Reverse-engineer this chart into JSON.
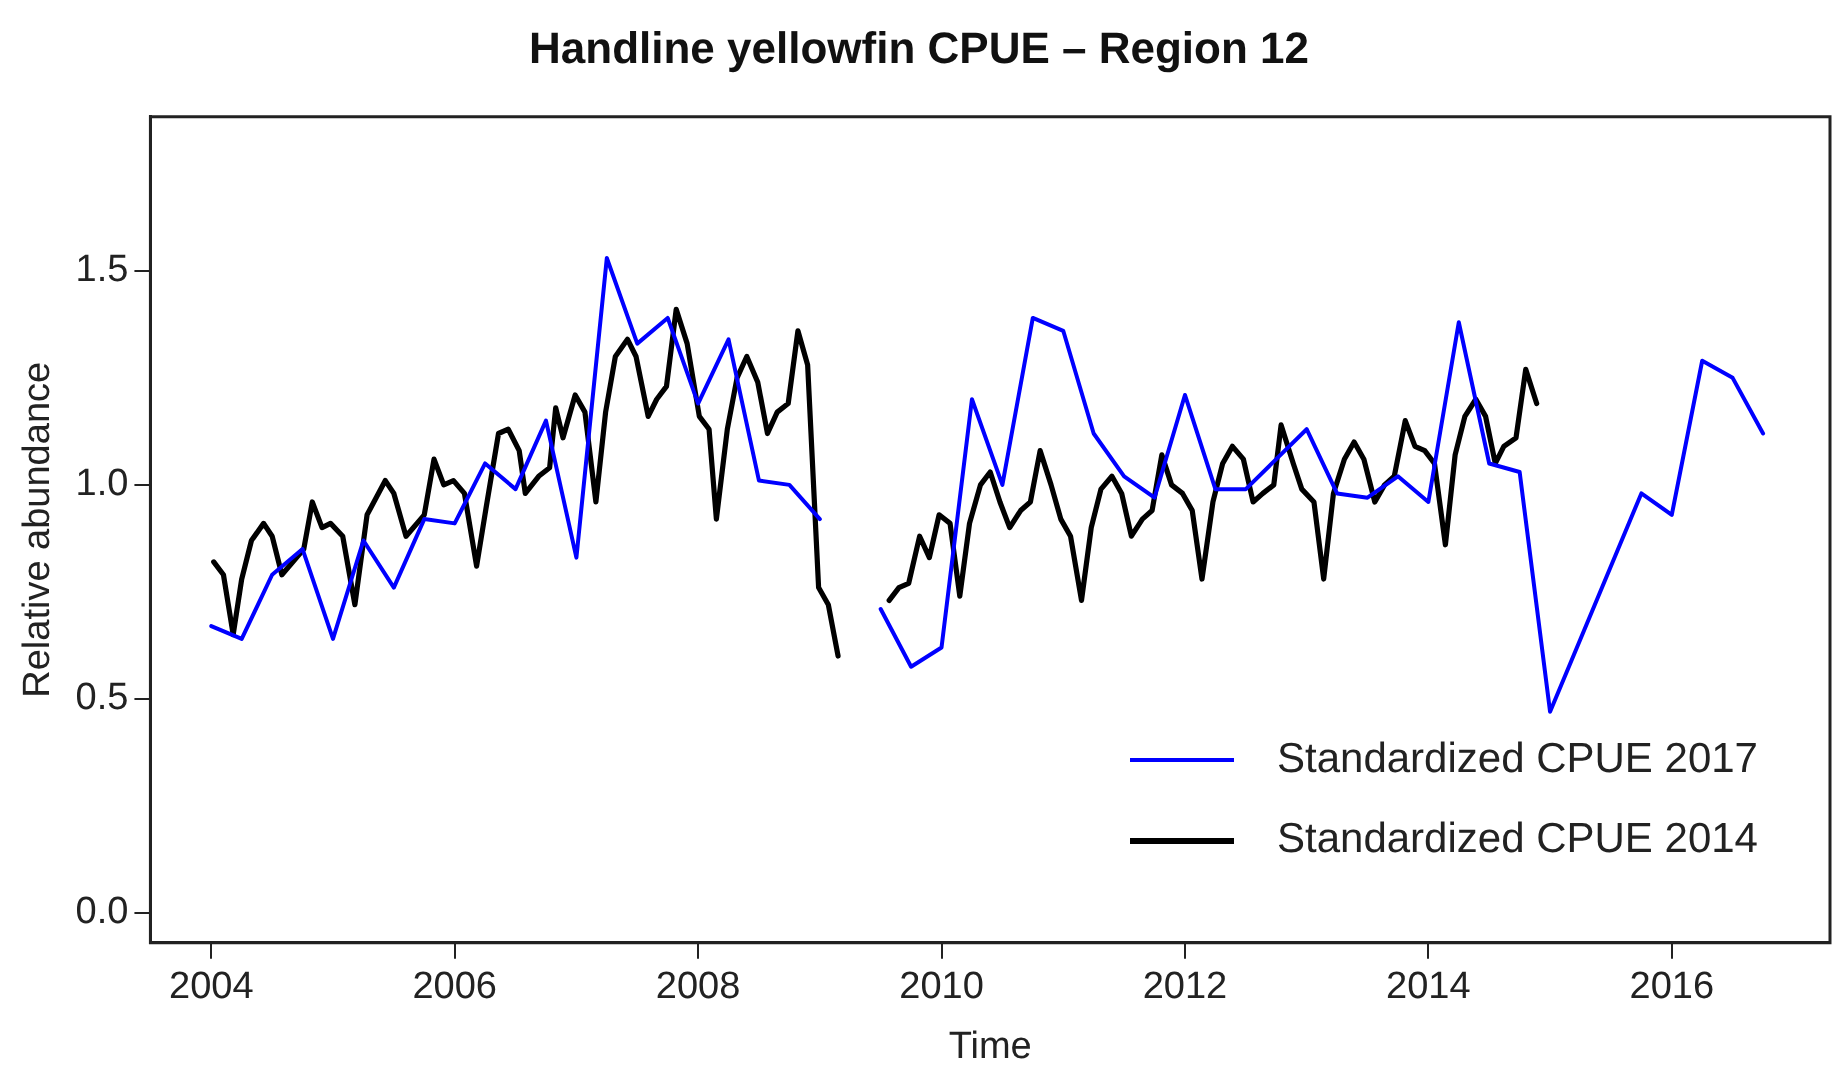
{
  "chart_data": {
    "type": "line",
    "title": "Handline yellowfin CPUE – Region 12",
    "xlabel": "Time",
    "ylabel": "Relative abundance",
    "xlim": [
      2003.5,
      2017.3
    ],
    "xticks": [
      2004,
      2006,
      2008,
      2010,
      2012,
      2014,
      2016
    ],
    "ylim": [
      -0.07,
      1.86
    ],
    "yticks": [
      {
        "value": 0,
        "label": "0.0"
      },
      {
        "value": 0.5,
        "label": "0.5"
      },
      {
        "value": 1,
        "label": "1.0"
      },
      {
        "value": 1.5,
        "label": "1.5"
      }
    ],
    "grid": false,
    "legend": "bottom right",
    "marker": "none",
    "line_style": "solid",
    "series": [
      {
        "name": "Standardized CPUE 2017",
        "color": "#0000ff",
        "x": [
          2004,
          2004.25,
          2004.5,
          2004.75,
          2005,
          2005.25,
          2005.5,
          2005.75,
          2006,
          2006.25,
          2006.5,
          2006.75,
          2007,
          2007.25,
          2007.5,
          2007.75,
          2008,
          2008.25,
          2008.5,
          2008.75,
          2009,
          2009.25,
          2009.5,
          2009.75,
          2010,
          2010.25,
          2010.5,
          2010.75,
          2011,
          2011.25,
          2011.5,
          2011.75,
          2012,
          2012.25,
          2012.5,
          2012.75,
          2013,
          2013.25,
          2013.5,
          2013.75,
          2014,
          2014.25,
          2014.5,
          2014.75,
          2015,
          2015.75,
          2016,
          2016.25,
          2016.5,
          2016.75
        ],
        "values": [
          0.67,
          0.64,
          0.79,
          0.85,
          0.64,
          0.87,
          0.76,
          0.92,
          0.91,
          1.05,
          0.99,
          1.15,
          0.83,
          1.53,
          1.33,
          1.39,
          1.19,
          1.34,
          1.01,
          1,
          0.92,
          null,
          0.71,
          0.575,
          0.62,
          1.2,
          1,
          1.39,
          1.36,
          1.12,
          1.02,
          0.97,
          1.21,
          0.99,
          0.99,
          1.06,
          1.13,
          0.98,
          0.97,
          1.02,
          0.96,
          1.38,
          1.05,
          1.03,
          0.47,
          0.98,
          0.93,
          1.29,
          1.25,
          1.12
        ]
      },
      {
        "name": "Standardized CPUE 2014",
        "color": "#000000",
        "x": [
          2004.02,
          2004.1,
          2004.18,
          2004.25,
          2004.33,
          2004.43,
          2004.5,
          2004.58,
          2004.76,
          2004.83,
          2004.91,
          2004.98,
          2005.08,
          2005.18,
          2005.28,
          2005.43,
          2005.5,
          2005.6,
          2005.75,
          2005.83,
          2005.91,
          2005.99,
          2006.08,
          2006.18,
          2006.26,
          2006.36,
          2006.44,
          2006.53,
          2006.58,
          2006.69,
          2006.78,
          2006.83,
          2006.89,
          2006.99,
          2007.07,
          2007.16,
          2007.24,
          2007.32,
          2007.42,
          2007.49,
          2007.59,
          2007.66,
          2007.74,
          2007.82,
          2007.91,
          2008.01,
          2008.09,
          2008.15,
          2008.24,
          2008.32,
          2008.4,
          2008.49,
          2008.57,
          2008.65,
          2008.74,
          2008.82,
          2008.9,
          2008.99,
          2009.07,
          2009.15,
          2009.35,
          2009.57,
          2009.65,
          2009.73,
          2009.82,
          2009.9,
          2009.98,
          2010.07,
          2010.15,
          2010.23,
          2010.32,
          2010.4,
          2010.48,
          2010.56,
          2010.65,
          2010.73,
          2010.81,
          2010.9,
          2010.98,
          2011.06,
          2011.15,
          2011.23,
          2011.31,
          2011.4,
          2011.48,
          2011.56,
          2011.65,
          2011.73,
          2011.81,
          2011.89,
          2011.98,
          2012.06,
          2012.14,
          2012.23,
          2012.31,
          2012.39,
          2012.48,
          2012.56,
          2012.64,
          2012.73,
          2012.79,
          2012.89,
          2012.96,
          2013.06,
          2013.14,
          2013.22,
          2013.31,
          2013.39,
          2013.47,
          2013.56,
          2013.64,
          2013.72,
          2013.81,
          2013.89,
          2013.97,
          2014.05,
          2014.14,
          2014.22,
          2014.3,
          2014.39,
          2014.47,
          2014.55,
          2014.62,
          2014.72,
          2014.8,
          2014.89
        ],
        "values": [
          0.82,
          0.79,
          0.65,
          0.78,
          0.87,
          0.91,
          0.88,
          0.79,
          0.85,
          0.96,
          0.9,
          0.91,
          0.88,
          0.72,
          0.93,
          1.01,
          0.98,
          0.88,
          0.93,
          1.06,
          1,
          1.01,
          0.98,
          0.81,
          0.95,
          1.12,
          1.13,
          1.08,
          0.98,
          1.02,
          1.04,
          1.18,
          1.11,
          1.21,
          1.17,
          0.96,
          1.17,
          1.3,
          1.34,
          1.3,
          1.16,
          1.2,
          1.23,
          1.41,
          1.33,
          1.16,
          1.13,
          0.92,
          1.13,
          1.25,
          1.3,
          1.24,
          1.12,
          1.17,
          1.19,
          1.36,
          1.28,
          0.76,
          0.72,
          0.6,
          null,
          0.73,
          0.76,
          0.77,
          0.88,
          0.83,
          0.93,
          0.91,
          0.74,
          0.91,
          1,
          1.03,
          0.96,
          0.9,
          0.94,
          0.96,
          1.08,
          1,
          0.92,
          0.88,
          0.73,
          0.9,
          0.99,
          1.02,
          0.98,
          0.88,
          0.92,
          0.94,
          1.07,
          1,
          0.98,
          0.94,
          0.78,
          0.96,
          1.05,
          1.09,
          1.06,
          0.96,
          0.98,
          1,
          1.14,
          1.05,
          0.99,
          0.96,
          0.78,
          0.98,
          1.06,
          1.1,
          1.06,
          0.96,
          1,
          1.02,
          1.15,
          1.09,
          1.08,
          1.05,
          0.86,
          1.07,
          1.16,
          1.2,
          1.16,
          1.05,
          1.09,
          1.11,
          1.27,
          1.19
        ]
      }
    ]
  }
}
